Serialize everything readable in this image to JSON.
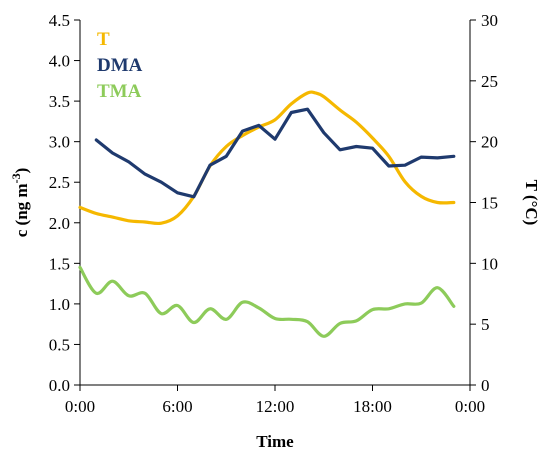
{
  "chart_data": {
    "type": "line",
    "xlabel": "Time",
    "ylabel_left": "c (ng m-3)",
    "ylabel_left_main": "c (ng m",
    "ylabel_left_sup": "-3",
    "ylabel_left_close": ")",
    "ylabel_right": "T (°C)",
    "ylim_left": [
      0,
      4.5
    ],
    "ylim_right": [
      0,
      30
    ],
    "x_range_hours": [
      0,
      24
    ],
    "x_ticks": [
      0,
      6,
      12,
      18,
      24
    ],
    "x_tick_labels": [
      "0:00",
      "6:00",
      "12:00",
      "18:00",
      "0:00"
    ],
    "y_left_ticks": [
      "0.0",
      "0.5",
      "1.0",
      "1.5",
      "2.0",
      "2.5",
      "3.0",
      "3.5",
      "4.0",
      "4.5"
    ],
    "y_right_ticks": [
      "0",
      "5",
      "10",
      "15",
      "20",
      "25",
      "30"
    ],
    "grid": false,
    "legend_position": "top-left",
    "series": [
      {
        "name": "T",
        "axis": "right",
        "color": "#F5B800",
        "smooth": true,
        "x": [
          0,
          1,
          2,
          3,
          4,
          5,
          6,
          7,
          8,
          9,
          10,
          11,
          12,
          13,
          14,
          14.5,
          15,
          16,
          17,
          18,
          19,
          20,
          21,
          22,
          23
        ],
        "y": [
          14.6,
          14.1,
          13.8,
          13.5,
          13.4,
          13.3,
          13.9,
          15.5,
          18.0,
          19.6,
          20.5,
          21.2,
          21.8,
          23.1,
          24.0,
          24.0,
          23.7,
          22.6,
          21.6,
          20.3,
          18.8,
          16.7,
          15.5,
          15.0,
          15.0
        ]
      },
      {
        "name": "DMA",
        "axis": "left",
        "color": "#1F3A6E",
        "smooth": false,
        "x": [
          1,
          2,
          3,
          4,
          5,
          6,
          7,
          8,
          9,
          10,
          11,
          12,
          13,
          14,
          15,
          16,
          17,
          18,
          19,
          20,
          21,
          22,
          23
        ],
        "y": [
          3.02,
          2.86,
          2.75,
          2.6,
          2.5,
          2.37,
          2.32,
          2.71,
          2.82,
          3.13,
          3.2,
          3.03,
          3.36,
          3.4,
          3.11,
          2.9,
          2.94,
          2.92,
          2.7,
          2.71,
          2.81,
          2.8,
          2.82
        ]
      },
      {
        "name": "TMA",
        "axis": "left",
        "color": "#8DCB5A",
        "smooth": true,
        "x": [
          0,
          1,
          2,
          3,
          4,
          5,
          6,
          7,
          8,
          9,
          10,
          11,
          12,
          13,
          14,
          15,
          16,
          17,
          18,
          19,
          20,
          21,
          22,
          23
        ],
        "y": [
          1.45,
          1.13,
          1.28,
          1.1,
          1.13,
          0.88,
          0.98,
          0.77,
          0.94,
          0.81,
          1.02,
          0.95,
          0.82,
          0.81,
          0.78,
          0.6,
          0.76,
          0.79,
          0.93,
          0.94,
          1.0,
          1.01,
          1.2,
          0.97
        ]
      }
    ]
  }
}
